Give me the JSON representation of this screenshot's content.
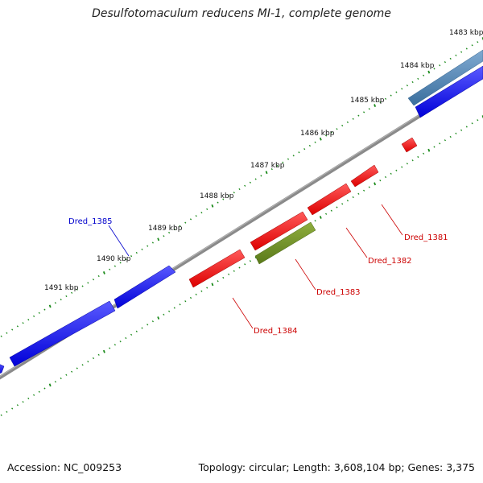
{
  "title": "Desulfotomaculum reducens MI-1, complete genome",
  "accession_text": "Accession: NC_009253",
  "summary_text": "Topology: circular; Length: 3,608,104 bp; Genes: 3,375",
  "colors": {
    "backbone": "#808080",
    "ticks": "#1a8a1a",
    "forward_gene": "#0000ee",
    "reverse_gene": "#ee0000",
    "highlight_gene": "#6b8e23",
    "rna_gene": "#4682b4",
    "label_forward": "#0000cc",
    "label_reverse": "#cc0000"
  },
  "scale": {
    "labels": [
      {
        "text": "1483 kbp"
      },
      {
        "text": "1484 kbp"
      },
      {
        "text": "1485 kbp"
      },
      {
        "text": "1486 kbp"
      },
      {
        "text": "1487 kbp"
      },
      {
        "text": "1488 kbp"
      },
      {
        "text": "1489 kbp"
      },
      {
        "text": "1490 kbp"
      },
      {
        "text": "1491 kbp"
      }
    ]
  },
  "genes": {
    "labeled": [
      {
        "name": "Dred_1381",
        "strand": "reverse"
      },
      {
        "name": "Dred_1382",
        "strand": "reverse"
      },
      {
        "name": "Dred_1383",
        "strand": "reverse"
      },
      {
        "name": "Dred_1384",
        "strand": "reverse"
      },
      {
        "name": "Dred_1385",
        "strand": "forward"
      }
    ]
  }
}
